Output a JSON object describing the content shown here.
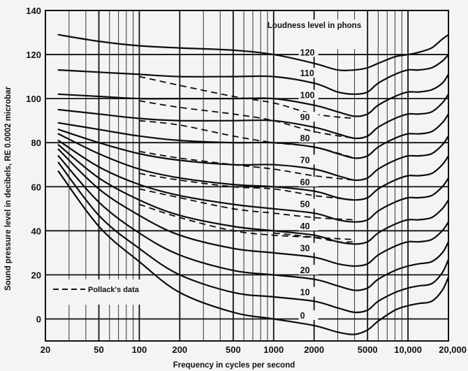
{
  "chart_data": {
    "type": "line",
    "xlabel": "Frequency in cycles per second",
    "ylabel": "Sound pressure level in decibels, RE 0.0002 microbar",
    "x_scale": "log",
    "xlim": [
      20,
      20000
    ],
    "ylim": [
      -10,
      140
    ],
    "x_ticks": [
      20,
      50,
      100,
      200,
      500,
      1000,
      2000,
      5000,
      10000,
      20000
    ],
    "x_tick_labels": [
      "20",
      "50",
      "100",
      "200",
      "500",
      "1000",
      "2000",
      "5000",
      "10,000",
      "20,000"
    ],
    "y_ticks": [
      0,
      20,
      40,
      60,
      80,
      100,
      120,
      140
    ],
    "grid": true,
    "legend_title": "Loudness level in phons",
    "legend_entry": "Pollack's data",
    "curve_labels": [
      "120",
      "110",
      "100",
      "90",
      "80",
      "70",
      "60",
      "50",
      "40",
      "30",
      "20",
      "10",
      "0"
    ],
    "series": [
      {
        "phon": 120,
        "label": "120",
        "points": [
          [
            25,
            129
          ],
          [
            50,
            126
          ],
          [
            100,
            124
          ],
          [
            200,
            123
          ],
          [
            500,
            122
          ],
          [
            1000,
            120
          ],
          [
            2000,
            116
          ],
          [
            3000,
            113
          ],
          [
            4000,
            113
          ],
          [
            5000,
            114
          ],
          [
            6000,
            116
          ],
          [
            8000,
            119
          ],
          [
            10000,
            120
          ],
          [
            12000,
            121
          ],
          [
            15000,
            123
          ],
          [
            18000,
            127
          ],
          [
            20000,
            129
          ]
        ]
      },
      {
        "phon": 110,
        "label": "110",
        "points": [
          [
            25,
            113
          ],
          [
            50,
            112
          ],
          [
            100,
            111
          ],
          [
            200,
            110
          ],
          [
            500,
            110
          ],
          [
            1000,
            110
          ],
          [
            2000,
            107
          ],
          [
            3000,
            103
          ],
          [
            4000,
            102
          ],
          [
            5000,
            103
          ],
          [
            6000,
            107
          ],
          [
            8000,
            111
          ],
          [
            10000,
            113
          ],
          [
            12000,
            113
          ],
          [
            15000,
            114
          ],
          [
            18000,
            117
          ],
          [
            20000,
            120
          ]
        ]
      },
      {
        "phon": 100,
        "label": "100",
        "points": [
          [
            25,
            102
          ],
          [
            50,
            101
          ],
          [
            100,
            100
          ],
          [
            200,
            100
          ],
          [
            500,
            100
          ],
          [
            1000,
            100
          ],
          [
            2000,
            97
          ],
          [
            3000,
            94
          ],
          [
            4000,
            92
          ],
          [
            5000,
            93
          ],
          [
            6000,
            97
          ],
          [
            8000,
            101
          ],
          [
            10000,
            103
          ],
          [
            12000,
            103
          ],
          [
            15000,
            104
          ],
          [
            18000,
            107
          ],
          [
            20000,
            111
          ]
        ]
      },
      {
        "phon": 90,
        "label": "90",
        "points": [
          [
            25,
            95
          ],
          [
            50,
            93
          ],
          [
            100,
            91
          ],
          [
            200,
            90
          ],
          [
            500,
            90
          ],
          [
            1000,
            90
          ],
          [
            2000,
            87
          ],
          [
            3000,
            84
          ],
          [
            4000,
            82
          ],
          [
            5000,
            83
          ],
          [
            6000,
            87
          ],
          [
            8000,
            91
          ],
          [
            10000,
            93
          ],
          [
            12000,
            93
          ],
          [
            15000,
            94
          ],
          [
            18000,
            98
          ],
          [
            20000,
            102
          ]
        ]
      },
      {
        "phon": 80,
        "label": "80",
        "points": [
          [
            25,
            89
          ],
          [
            50,
            86
          ],
          [
            100,
            83
          ],
          [
            200,
            81
          ],
          [
            500,
            80
          ],
          [
            1000,
            80
          ],
          [
            2000,
            78
          ],
          [
            3000,
            75
          ],
          [
            4000,
            73
          ],
          [
            5000,
            74
          ],
          [
            6000,
            78
          ],
          [
            8000,
            82
          ],
          [
            10000,
            84
          ],
          [
            12000,
            84
          ],
          [
            15000,
            85
          ],
          [
            18000,
            89
          ],
          [
            20000,
            93
          ]
        ]
      },
      {
        "phon": 70,
        "label": "70",
        "points": [
          [
            25,
            86
          ],
          [
            50,
            80
          ],
          [
            100,
            75
          ],
          [
            200,
            72
          ],
          [
            500,
            70
          ],
          [
            1000,
            70
          ],
          [
            2000,
            68
          ],
          [
            3000,
            65
          ],
          [
            4000,
            63
          ],
          [
            5000,
            64
          ],
          [
            6000,
            68
          ],
          [
            8000,
            72
          ],
          [
            10000,
            74
          ],
          [
            12000,
            74
          ],
          [
            15000,
            75
          ],
          [
            18000,
            79
          ],
          [
            20000,
            83
          ]
        ]
      },
      {
        "phon": 60,
        "label": "60",
        "points": [
          [
            25,
            84
          ],
          [
            50,
            75
          ],
          [
            100,
            68
          ],
          [
            200,
            64
          ],
          [
            500,
            61
          ],
          [
            1000,
            60
          ],
          [
            2000,
            58
          ],
          [
            3000,
            55
          ],
          [
            4000,
            54
          ],
          [
            5000,
            55
          ],
          [
            6000,
            59
          ],
          [
            8000,
            63
          ],
          [
            10000,
            65
          ],
          [
            12000,
            65
          ],
          [
            15000,
            66
          ],
          [
            18000,
            70
          ],
          [
            20000,
            74
          ]
        ]
      },
      {
        "phon": 50,
        "label": "50",
        "points": [
          [
            25,
            81
          ],
          [
            50,
            69
          ],
          [
            100,
            61
          ],
          [
            200,
            56
          ],
          [
            500,
            52
          ],
          [
            1000,
            50
          ],
          [
            2000,
            48
          ],
          [
            3000,
            45
          ],
          [
            4000,
            44
          ],
          [
            5000,
            45
          ],
          [
            6000,
            49
          ],
          [
            8000,
            53
          ],
          [
            10000,
            55
          ],
          [
            12000,
            55
          ],
          [
            15000,
            56
          ],
          [
            18000,
            60
          ],
          [
            20000,
            64
          ]
        ]
      },
      {
        "phon": 40,
        "label": "40",
        "points": [
          [
            25,
            79
          ],
          [
            50,
            64
          ],
          [
            100,
            54
          ],
          [
            200,
            47
          ],
          [
            500,
            42
          ],
          [
            1000,
            40
          ],
          [
            2000,
            38
          ],
          [
            3000,
            35
          ],
          [
            4000,
            34
          ],
          [
            5000,
            35
          ],
          [
            6000,
            39
          ],
          [
            8000,
            43
          ],
          [
            10000,
            45
          ],
          [
            12000,
            45
          ],
          [
            15000,
            46
          ],
          [
            18000,
            50
          ],
          [
            20000,
            54
          ]
        ]
      },
      {
        "phon": 30,
        "label": "30",
        "points": [
          [
            25,
            77
          ],
          [
            50,
            59
          ],
          [
            100,
            47
          ],
          [
            200,
            38
          ],
          [
            500,
            32
          ],
          [
            1000,
            30
          ],
          [
            2000,
            28
          ],
          [
            3000,
            25
          ],
          [
            4000,
            24
          ],
          [
            5000,
            25
          ],
          [
            6000,
            29
          ],
          [
            8000,
            33
          ],
          [
            10000,
            35
          ],
          [
            12000,
            35
          ],
          [
            15000,
            36
          ],
          [
            18000,
            40
          ],
          [
            20000,
            44
          ]
        ]
      },
      {
        "phon": 20,
        "label": "20",
        "points": [
          [
            25,
            74
          ],
          [
            50,
            53
          ],
          [
            100,
            39
          ],
          [
            200,
            29
          ],
          [
            500,
            22
          ],
          [
            1000,
            20
          ],
          [
            2000,
            18
          ],
          [
            3000,
            15
          ],
          [
            4000,
            13
          ],
          [
            5000,
            14
          ],
          [
            6000,
            18
          ],
          [
            8000,
            22
          ],
          [
            10000,
            24
          ],
          [
            12000,
            25
          ],
          [
            15000,
            26
          ],
          [
            18000,
            30
          ],
          [
            20000,
            35
          ]
        ]
      },
      {
        "phon": 10,
        "label": "10",
        "points": [
          [
            25,
            71
          ],
          [
            50,
            47
          ],
          [
            100,
            32
          ],
          [
            200,
            20
          ],
          [
            500,
            12
          ],
          [
            1000,
            10
          ],
          [
            2000,
            8
          ],
          [
            3000,
            5
          ],
          [
            4000,
            3
          ],
          [
            5000,
            4
          ],
          [
            6000,
            8
          ],
          [
            8000,
            12
          ],
          [
            10000,
            14
          ],
          [
            12000,
            15
          ],
          [
            15000,
            16
          ],
          [
            18000,
            21
          ],
          [
            20000,
            27
          ]
        ]
      },
      {
        "phon": 0,
        "label": "0",
        "points": [
          [
            25,
            67
          ],
          [
            50,
            42
          ],
          [
            100,
            26
          ],
          [
            200,
            12
          ],
          [
            500,
            3
          ],
          [
            1000,
            0
          ],
          [
            2000,
            -3
          ],
          [
            3000,
            -6
          ],
          [
            4000,
            -7
          ],
          [
            5000,
            -5
          ],
          [
            6000,
            -1
          ],
          [
            8000,
            4
          ],
          [
            10000,
            6
          ],
          [
            12000,
            7
          ],
          [
            15000,
            8
          ],
          [
            18000,
            13
          ],
          [
            20000,
            19
          ]
        ]
      }
    ],
    "pollack_series": [
      {
        "name": "Pollack's data",
        "points": [
          [
            100,
            110
          ],
          [
            200,
            106
          ],
          [
            500,
            101
          ],
          [
            1000,
            98
          ],
          [
            2000,
            93
          ],
          [
            4000,
            91
          ]
        ]
      },
      {
        "name": "Pollack's data",
        "points": [
          [
            100,
            99
          ],
          [
            200,
            96
          ],
          [
            500,
            93
          ],
          [
            1000,
            90
          ],
          [
            2000,
            85
          ],
          [
            4000,
            82
          ]
        ]
      },
      {
        "name": "Pollack's data",
        "points": [
          [
            100,
            90
          ],
          [
            200,
            88
          ],
          [
            500,
            83
          ],
          [
            1000,
            80
          ],
          [
            2000,
            78
          ],
          [
            4000,
            73
          ]
        ]
      },
      {
        "name": "Pollack's data",
        "points": [
          [
            100,
            76
          ],
          [
            200,
            73
          ],
          [
            500,
            70
          ],
          [
            1000,
            68
          ],
          [
            2000,
            65
          ],
          [
            4000,
            63
          ]
        ]
      },
      {
        "name": "Pollack's data",
        "points": [
          [
            100,
            66
          ],
          [
            200,
            63
          ],
          [
            500,
            60
          ],
          [
            1000,
            59
          ],
          [
            2000,
            56
          ],
          [
            4000,
            54
          ]
        ]
      },
      {
        "name": "Pollack's data",
        "points": [
          [
            100,
            59
          ],
          [
            200,
            55
          ],
          [
            500,
            50
          ],
          [
            1000,
            48
          ],
          [
            2000,
            46
          ],
          [
            4000,
            45
          ]
        ]
      },
      {
        "name": "Pollack's data",
        "points": [
          [
            100,
            52
          ],
          [
            200,
            46
          ],
          [
            500,
            40
          ],
          [
            1000,
            38
          ],
          [
            2000,
            37
          ],
          [
            4000,
            36
          ]
        ]
      },
      {
        "name": "Pollack's data",
        "points": [
          [
            1000,
            39
          ],
          [
            2000,
            37
          ],
          [
            3000,
            35
          ],
          [
            4000,
            35
          ]
        ]
      }
    ]
  }
}
